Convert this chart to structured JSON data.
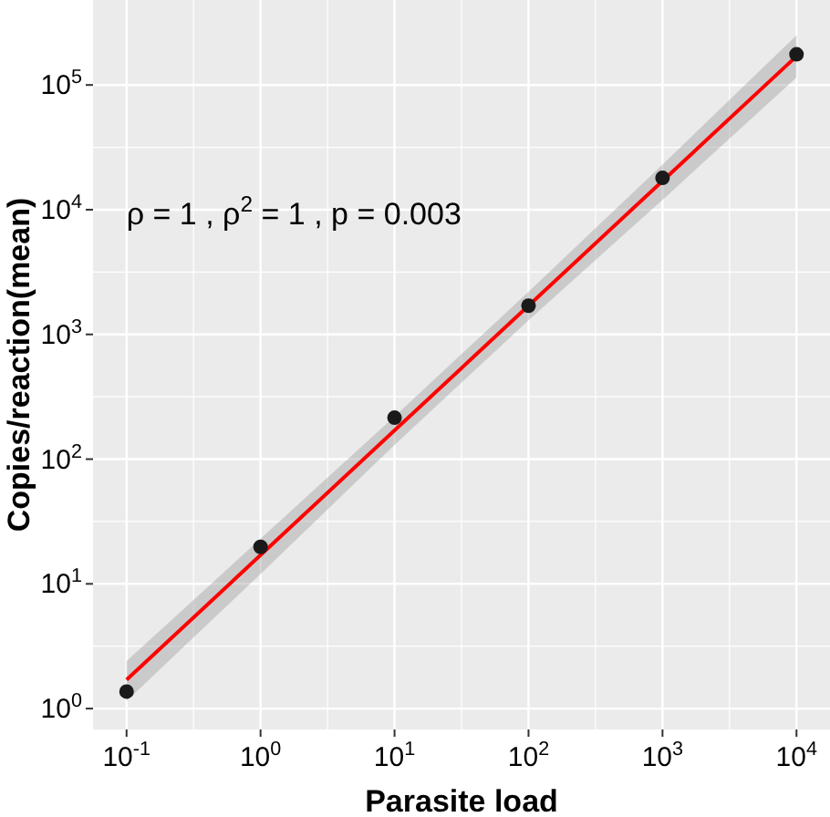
{
  "chart_data": {
    "type": "scatter",
    "xlabel": "Parasite load",
    "ylabel": "Copies/reaction(mean)",
    "log": "xy",
    "grid": true,
    "marker": "circle",
    "xlim": [
      0.0562,
      17783
    ],
    "ylim": [
      0.68,
      480000
    ],
    "xticks": [
      {
        "value": 0.1,
        "label": "10$^{-1}$"
      },
      {
        "value": 1,
        "label": "10$^{0}$"
      },
      {
        "value": 10,
        "label": "10$^{1}$"
      },
      {
        "value": 100,
        "label": "10$^{2}$"
      },
      {
        "value": 1000,
        "label": "10$^{3}$"
      },
      {
        "value": 10000,
        "label": "10$^{4}$"
      }
    ],
    "yticks": [
      {
        "value": 1,
        "label": "10$^{0}$"
      },
      {
        "value": 10,
        "label": "10$^{1}$"
      },
      {
        "value": 100,
        "label": "10$^{2}$"
      },
      {
        "value": 1000,
        "label": "10$^{3}$"
      },
      {
        "value": 10000,
        "label": "10$^{4}$"
      },
      {
        "value": 100000,
        "label": "10$^{5}$"
      }
    ],
    "x": [
      0.1,
      1,
      10,
      100,
      1000,
      10000
    ],
    "series": [
      {
        "type": "line",
        "color": "#ff0000",
        "line_style": "solid",
        "marker": "none",
        "x": [
          0.1,
          1,
          10,
          100,
          1000,
          10000
        ],
        "values": [
          1.7,
          17,
          170,
          1700,
          17000,
          170000
        ],
        "lower": [
          1.15,
          12,
          130,
          1300,
          12000,
          115000
        ],
        "upper": [
          2.4,
          23,
          220,
          2200,
          23000,
          250000
        ]
      },
      {
        "color": "#1a1a1a",
        "values": [
          1.37,
          19.8,
          215,
          1700,
          18000,
          176000
        ]
      }
    ],
    "annotations": [
      "ρ = 1 , ρ$^{2}$ = 1 , p = 0.003"
    ]
  }
}
